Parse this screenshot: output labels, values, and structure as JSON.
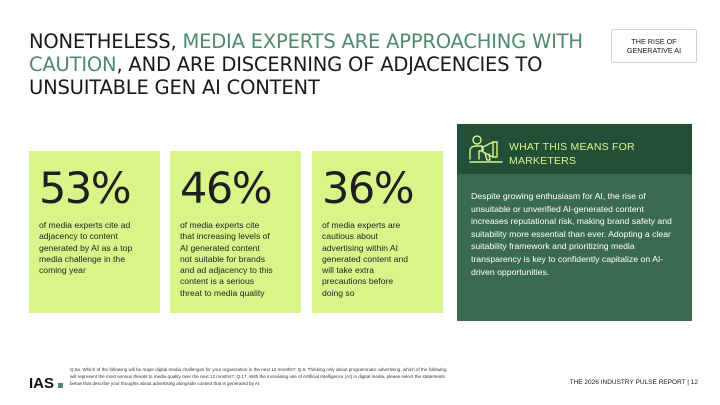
{
  "header": {
    "title_part1": "NONETHELESS, ",
    "title_highlight": "MEDIA EXPERTS ARE APPROACHING WITH CAUTION",
    "title_part2": ", AND ARE DISCERNING OF ADJACENCIES TO UNSUITABLE GEN AI CONTENT",
    "tag": "THE RISE OF GENERATIVE AI"
  },
  "stats": [
    {
      "value": "53%",
      "text": "of media experts cite ad\nadjacency to content\ngenerated by AI as a top\nmedia challenge in the\ncoming year"
    },
    {
      "value": "46%",
      "text": "of media experts cite\nthat increasing levels of\nAI generated content\nnot suitable for brands\nand ad adjacency to this\ncontent is a serious\nthreat to media quality"
    },
    {
      "value": "36%",
      "text": "of media experts are\ncautious about\nadvertising within AI\ngenerated content and\nwill take extra\nprecautions before\ndoing so"
    }
  ],
  "panel": {
    "title": "WHAT THIS MEANS FOR MARKETERS",
    "icon": "megaphone-person-icon",
    "body": "Despite growing enthusiasm for AI, the rise of unsuitable or unverified AI-generated content increases reputational risk, making brand safety and suitability more essential than ever. Adopting a clear suitability framework and prioritizing media transparency is key to confidently capitalize on AI-driven opportunities."
  },
  "footer": {
    "logo_text": "IAS",
    "footnote": "Q.5a. Which of the following will be major digital media challenges for your organization in the next 12 months?; Q.6. Thinking only about programmatic advertising, which of the following will represent the most serious threats to media quality over the next 12 months?; Q.17. With the increasing use of Artificial Intelligence (AI) in digital media, please select the statements below that describe your thoughts about advertising alongside content that is generated by AI.",
    "report": "THE 2026 INDUSTRY PULSE REPORT  |  12"
  },
  "colors": {
    "accent_green": "#4f8a6d",
    "stat_lime": "#d9f58a",
    "panel_green": "#3b6b4f",
    "panel_dark": "#234e38"
  }
}
